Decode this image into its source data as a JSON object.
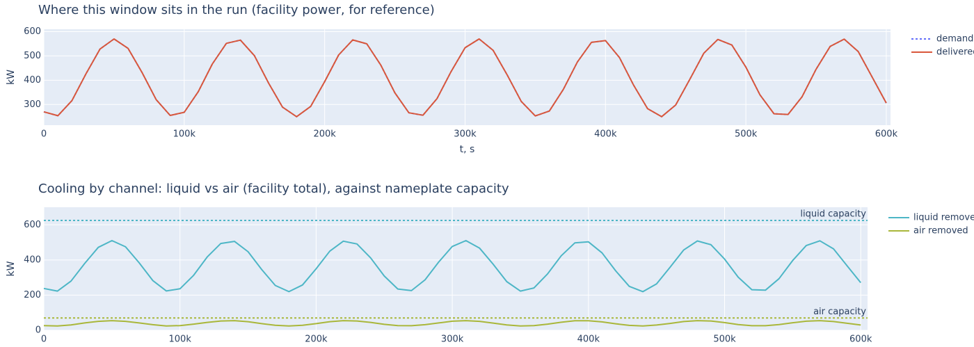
{
  "chart_data": [
    {
      "type": "line",
      "title": "Where this window sits in the run (facility power, for reference)",
      "xlabel": "t, s",
      "ylabel": "kW",
      "x": [
        0,
        10000,
        20000,
        30000,
        40000,
        50000,
        60000,
        70000,
        80000,
        90000,
        100000,
        110000,
        120000,
        130000,
        140000,
        150000,
        160000,
        170000,
        180000,
        190000,
        200000,
        210000,
        220000,
        230000,
        240000,
        250000,
        260000,
        270000,
        280000,
        290000,
        300000,
        310000,
        320000,
        330000,
        340000,
        350000,
        360000,
        370000,
        380000,
        390000,
        400000,
        410000,
        420000,
        430000,
        440000,
        450000,
        460000,
        470000,
        480000,
        490000,
        500000,
        510000,
        520000,
        530000,
        540000,
        550000,
        560000,
        570000,
        580000,
        590000,
        600000
      ],
      "series": [
        {
          "name": "demand",
          "color": "#636efa",
          "dash": "dot",
          "values": [
            270,
            254,
            316,
            426,
            528,
            570,
            531,
            431,
            320,
            255,
            268,
            353,
            467,
            552,
            565,
            501,
            389,
            289,
            250,
            292,
            394,
            504,
            566,
            550,
            462,
            348,
            266,
            256,
            324,
            435,
            534,
            570,
            523,
            422,
            313,
            253,
            273,
            362,
            475,
            556,
            563,
            493,
            380,
            283,
            250,
            298,
            403,
            511,
            568,
            545,
            454,
            340,
            262,
            259,
            332,
            445,
            539,
            569,
            518,
            412,
            306
          ]
        },
        {
          "name": "delivered",
          "color": "#d9573b",
          "dash": "solid",
          "values": [
            270,
            254,
            316,
            426,
            528,
            570,
            531,
            431,
            320,
            255,
            268,
            353,
            467,
            552,
            565,
            501,
            389,
            289,
            250,
            292,
            394,
            504,
            566,
            550,
            462,
            348,
            266,
            256,
            324,
            435,
            534,
            570,
            523,
            422,
            313,
            253,
            273,
            362,
            475,
            556,
            563,
            493,
            380,
            283,
            250,
            298,
            403,
            511,
            568,
            545,
            454,
            340,
            262,
            259,
            332,
            445,
            539,
            569,
            518,
            412,
            306
          ]
        }
      ],
      "xlim": [
        0,
        603000
      ],
      "xticks": [
        0,
        {
          "value": 100000,
          "label": "100k"
        },
        {
          "value": 200000,
          "label": "200k"
        },
        {
          "value": 300000,
          "label": "300k"
        },
        {
          "value": 400000,
          "label": "400k"
        },
        {
          "value": 500000,
          "label": "500k"
        },
        {
          "value": 600000,
          "label": "600k"
        }
      ],
      "ylim": [
        215,
        610
      ],
      "yticks": [
        300,
        400,
        500,
        600
      ],
      "grid": true,
      "legend": "right"
    },
    {
      "type": "line",
      "title": "Cooling by channel: liquid vs air (facility total), against nameplate capacity",
      "ylabel": "kW",
      "x": [
        0,
        10000,
        20000,
        30000,
        40000,
        50000,
        60000,
        70000,
        80000,
        90000,
        100000,
        110000,
        120000,
        130000,
        140000,
        150000,
        160000,
        170000,
        180000,
        190000,
        200000,
        210000,
        220000,
        230000,
        240000,
        250000,
        260000,
        270000,
        280000,
        290000,
        300000,
        310000,
        320000,
        330000,
        340000,
        350000,
        360000,
        370000,
        380000,
        390000,
        400000,
        410000,
        420000,
        430000,
        440000,
        450000,
        460000,
        470000,
        480000,
        490000,
        500000,
        510000,
        520000,
        530000,
        540000,
        550000,
        560000,
        570000,
        580000,
        590000,
        600000
      ],
      "series": [
        {
          "name": "liquid removed",
          "color": "#4db6c6",
          "dash": "solid",
          "values": [
            238,
            223,
            280,
            380,
            472,
            510,
            475,
            384,
            283,
            224,
            236,
            313,
            417,
            494,
            506,
            447,
            346,
            255,
            220,
            258,
            350,
            450,
            507,
            491,
            412,
            309,
            235,
            226,
            287,
            388,
            477,
            510,
            468,
            376,
            277,
            223,
            241,
            321,
            424,
            497,
            503,
            440,
            338,
            250,
            220,
            264,
            359,
            457,
            508,
            487,
            405,
            302,
            231,
            228,
            294,
            397,
            482,
            509,
            463,
            367,
            271
          ]
        },
        {
          "name": "air removed",
          "color": "#a9b73a",
          "dash": "solid",
          "values": [
            27,
            25,
            31,
            42,
            51,
            55,
            51,
            42,
            32,
            25,
            27,
            35,
            45,
            53,
            55,
            49,
            38,
            29,
            25,
            29,
            38,
            49,
            55,
            53,
            45,
            34,
            27,
            26,
            32,
            42,
            52,
            55,
            51,
            41,
            31,
            25,
            27,
            35,
            46,
            54,
            54,
            48,
            37,
            28,
            25,
            30,
            39,
            50,
            55,
            53,
            44,
            33,
            26,
            26,
            33,
            43,
            52,
            55,
            50,
            40,
            30
          ]
        }
      ],
      "hlines": [
        {
          "name": "liquid capacity",
          "value": 625,
          "color": "#4db6c6"
        },
        {
          "name": "air capacity",
          "value": 70,
          "color": "#a9b73a"
        }
      ],
      "xlim": [
        0,
        605000
      ],
      "xticks": [
        0,
        {
          "value": 100000,
          "label": "100k"
        },
        {
          "value": 200000,
          "label": "200k"
        },
        {
          "value": 300000,
          "label": "300k"
        },
        {
          "value": 400000,
          "label": "400k"
        },
        {
          "value": 500000,
          "label": "500k"
        },
        {
          "value": 600000,
          "label": "600k"
        }
      ],
      "ylim": [
        0,
        700
      ],
      "yticks": [
        0,
        200,
        400,
        600
      ],
      "grid": true,
      "legend": "right"
    }
  ]
}
